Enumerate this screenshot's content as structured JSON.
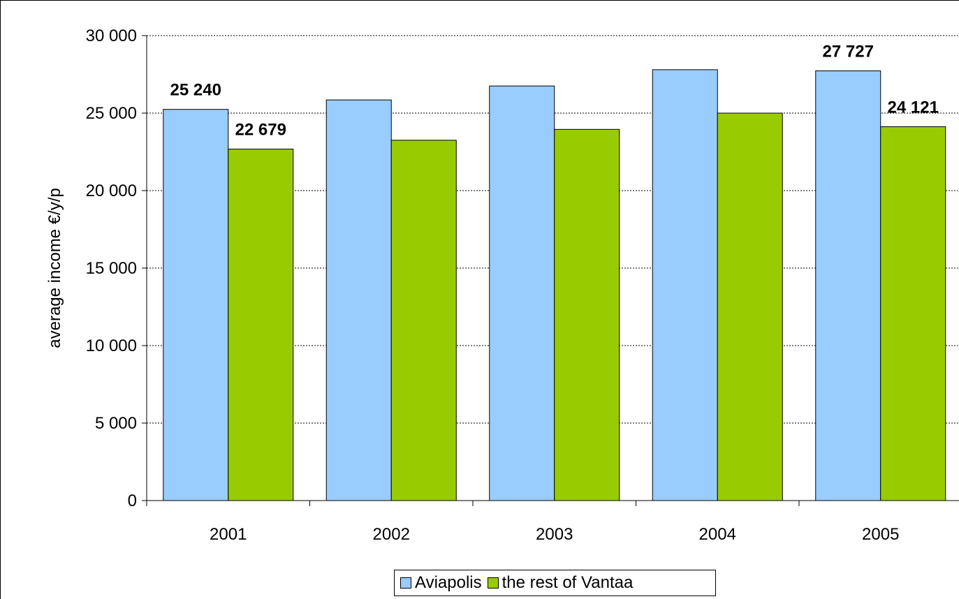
{
  "chart_data": {
    "type": "bar",
    "title": "",
    "xlabel": "",
    "ylabel": "average income €/y/p",
    "categories": [
      "2001",
      "2002",
      "2003",
      "2004",
      "2005"
    ],
    "ylim": [
      0,
      30000
    ],
    "yticks": [
      0,
      5000,
      10000,
      15000,
      20000,
      25000,
      30000
    ],
    "ytick_labels": [
      "0",
      "5 000",
      "10 000",
      "15 000",
      "20 000",
      "25 000",
      "30 000"
    ],
    "grid": "horizontal dashed",
    "legend_position": "bottom",
    "series": [
      {
        "name": "Aviapolis",
        "color": "#99ccff",
        "values": [
          25240,
          25850,
          26750,
          27800,
          27727
        ],
        "data_labels": [
          "25 240",
          "",
          "",
          "",
          "27 727"
        ]
      },
      {
        "name": "the rest of Vantaa",
        "color": "#99cc00",
        "values": [
          22679,
          23250,
          23950,
          25000,
          24121
        ],
        "data_labels": [
          "22 679",
          "",
          "",
          "",
          "24 121"
        ]
      }
    ]
  }
}
